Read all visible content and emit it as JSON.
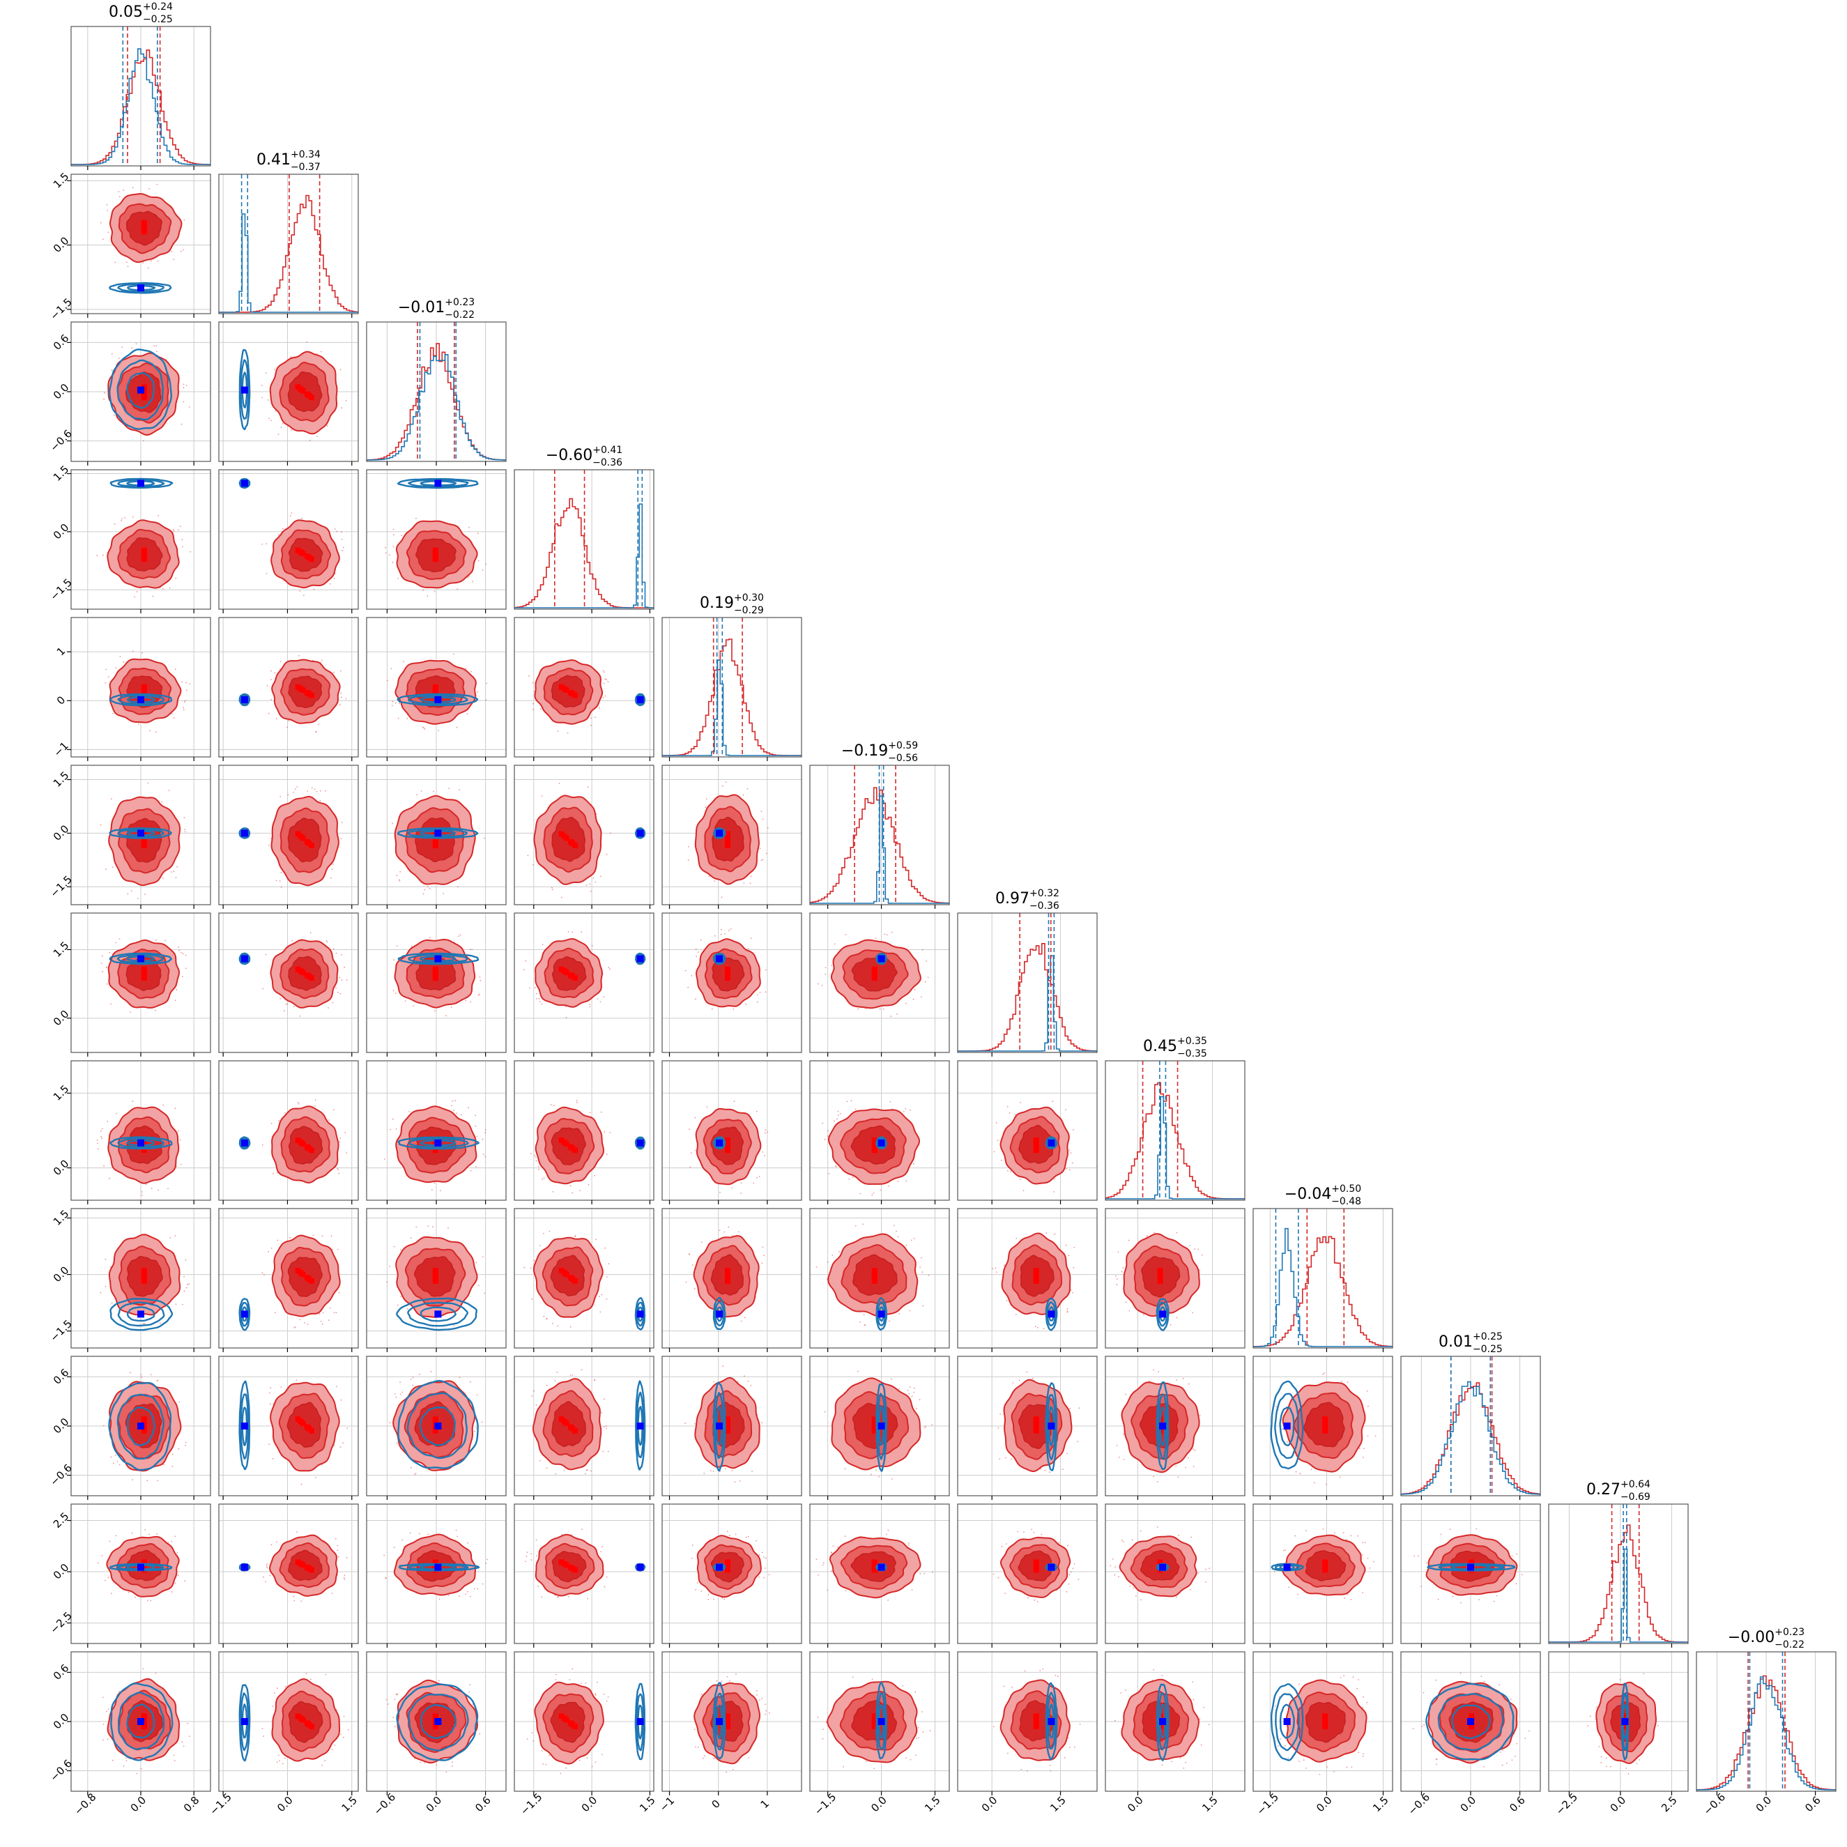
{
  "chart_data": {
    "type": "corner",
    "n_params": 12,
    "series": [
      {
        "name": "",
        "color": "#d62728",
        "role": "filled-2d-contours-and-histograms"
      },
      {
        "name": "",
        "color": "#1f77b4",
        "role": "line-contours-and-histograms"
      }
    ],
    "marker_colors": {
      "blue_point": "#0000ff",
      "red_point": "#ff0000"
    },
    "params": [
      {
        "title_center": "0.05",
        "title_plus": "+0.24",
        "title_minus": "−0.25",
        "red_mean": 0.05,
        "red_sd": 0.245,
        "blue_mean": 0.0,
        "blue_sd": 0.2,
        "blue_q": [
          -0.27,
          0.25
        ],
        "red_q": [
          -0.2,
          0.29
        ],
        "range": [
          -1.05,
          1.05
        ],
        "ticks": [
          -0.8,
          0.0,
          0.8
        ],
        "tick_labels": [
          "−0.8",
          "0.0",
          "0.8"
        ]
      },
      {
        "title_center": "0.41",
        "title_plus": "+0.34",
        "title_minus": "−0.37",
        "red_mean": 0.41,
        "red_sd": 0.36,
        "blue_mean": -1.0,
        "blue_sd": 0.05,
        "blue_q": [
          -1.07,
          -0.93
        ],
        "red_q": [
          0.04,
          0.75
        ],
        "range": [
          -1.6,
          1.65
        ],
        "ticks": [
          -1.5,
          0.0,
          1.5
        ],
        "tick_labels": [
          "−1.5",
          "0.0",
          "1.5"
        ]
      },
      {
        "title_center": "−0.01",
        "title_plus": "+0.23",
        "title_minus": "−0.22",
        "red_mean": -0.01,
        "red_sd": 0.225,
        "blue_mean": 0.02,
        "blue_sd": 0.21,
        "blue_q": [
          -0.2,
          0.24
        ],
        "red_q": [
          -0.23,
          0.22
        ],
        "range": [
          -0.85,
          0.85
        ],
        "ticks": [
          -0.6,
          0.0,
          0.6
        ],
        "tick_labels": [
          "−0.6",
          "0.0",
          "0.6"
        ]
      },
      {
        "title_center": "−0.60",
        "title_plus": "+0.41",
        "title_minus": "−0.36",
        "red_mean": -0.6,
        "red_sd": 0.4,
        "blue_mean": 1.25,
        "blue_sd": 0.05,
        "blue_q": [
          1.19,
          1.3
        ],
        "red_q": [
          -0.96,
          -0.19
        ],
        "range": [
          -2.0,
          1.6
        ],
        "ticks": [
          -1.5,
          0.0,
          1.5
        ],
        "tick_labels": [
          "−1.5",
          "0.0",
          "1.5"
        ]
      },
      {
        "title_center": "0.19",
        "title_plus": "+0.30",
        "title_minus": "−0.29",
        "red_mean": 0.19,
        "red_sd": 0.3,
        "blue_mean": 0.02,
        "blue_sd": 0.05,
        "blue_q": [
          -0.03,
          0.08
        ],
        "red_q": [
          -0.1,
          0.49
        ],
        "range": [
          -1.15,
          1.7
        ],
        "ticks": [
          -1,
          0,
          1
        ],
        "tick_labels": [
          "−1",
          "0",
          "1"
        ]
      },
      {
        "title_center": "−0.19",
        "title_plus": "+0.59",
        "title_minus": "−0.56",
        "red_mean": -0.19,
        "red_sd": 0.57,
        "blue_mean": 0.0,
        "blue_sd": 0.06,
        "blue_q": [
          -0.06,
          0.06
        ],
        "red_q": [
          -0.75,
          0.4
        ],
        "range": [
          -2.0,
          1.9
        ],
        "ticks": [
          -1.5,
          0.0,
          1.5
        ],
        "tick_labels": [
          "−1.5",
          "0.0",
          "1.5"
        ]
      },
      {
        "title_center": "0.97",
        "title_plus": "+0.32",
        "title_minus": "−0.36",
        "red_mean": 0.97,
        "red_sd": 0.34,
        "blue_mean": 1.3,
        "blue_sd": 0.05,
        "blue_q": [
          1.24,
          1.36
        ],
        "red_q": [
          0.61,
          1.29
        ],
        "range": [
          -0.75,
          2.3
        ],
        "ticks": [
          0.0,
          1.5
        ],
        "tick_labels": [
          "0.0",
          "1.5"
        ]
      },
      {
        "title_center": "0.45",
        "title_plus": "+0.35",
        "title_minus": "−0.35",
        "red_mean": 0.45,
        "red_sd": 0.35,
        "blue_mean": 0.5,
        "blue_sd": 0.05,
        "blue_q": [
          0.44,
          0.56
        ],
        "red_q": [
          0.1,
          0.8
        ],
        "range": [
          -0.65,
          2.15
        ],
        "ticks": [
          0.0,
          1.5
        ],
        "tick_labels": [
          "0.0",
          "1.5"
        ]
      },
      {
        "title_center": "−0.04",
        "title_plus": "+0.50",
        "title_minus": "−0.48",
        "red_mean": -0.04,
        "red_sd": 0.49,
        "blue_mean": -1.05,
        "blue_sd": 0.18,
        "blue_q": [
          -1.35,
          -0.75
        ],
        "red_q": [
          -0.52,
          0.46
        ],
        "range": [
          -1.95,
          1.75
        ],
        "ticks": [
          -1.5,
          0.0,
          1.5
        ],
        "tick_labels": [
          "−1.5",
          "0.0",
          "1.5"
        ]
      },
      {
        "title_center": "0.01",
        "title_plus": "+0.25",
        "title_minus": "−0.25",
        "red_mean": 0.01,
        "red_sd": 0.25,
        "blue_mean": 0.0,
        "blue_sd": 0.23,
        "blue_q": [
          -0.24,
          0.24
        ],
        "red_q": [
          -0.24,
          0.26
        ],
        "range": [
          -0.85,
          0.85
        ],
        "ticks": [
          -0.6,
          0.0,
          0.6
        ],
        "tick_labels": [
          "−0.6",
          "0.0",
          "0.6"
        ]
      },
      {
        "title_center": "0.27",
        "title_plus": "+0.64",
        "title_minus": "−0.69",
        "red_mean": 0.27,
        "red_sd": 0.67,
        "blue_mean": 0.22,
        "blue_sd": 0.07,
        "blue_q": [
          0.14,
          0.3
        ],
        "red_q": [
          -0.42,
          0.91
        ],
        "range": [
          -3.5,
          3.3
        ],
        "ticks": [
          -2.5,
          0.0,
          2.5
        ],
        "tick_labels": [
          "−2.5",
          "0.0",
          "2.5"
        ]
      },
      {
        "title_center": "−0.00",
        "title_plus": "+0.23",
        "title_minus": "−0.22",
        "red_mean": 0.0,
        "red_sd": 0.225,
        "blue_mean": 0.0,
        "blue_sd": 0.2,
        "blue_q": [
          -0.2,
          0.2
        ],
        "red_q": [
          -0.22,
          0.23
        ],
        "range": [
          -0.85,
          0.85
        ],
        "ticks": [
          -0.6,
          0.0,
          0.6
        ],
        "tick_labels": [
          "−0.6",
          "0.0",
          "0.6"
        ]
      }
    ],
    "red_point_offsets": [
      0.6,
      0.35,
      0.2,
      -0.2,
      -0.4,
      -0.65
    ],
    "grid": true,
    "title": "",
    "xlabel": "",
    "ylabel": ""
  }
}
